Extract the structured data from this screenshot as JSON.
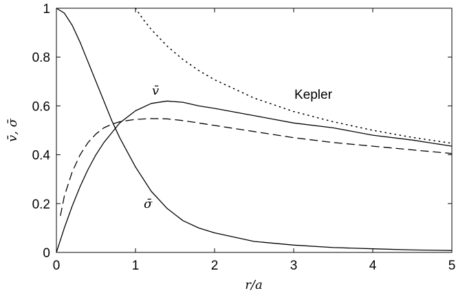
{
  "chart_data": {
    "type": "line",
    "title": "",
    "xlabel": "r/a",
    "ylabel": "v̄, σ̄",
    "xlim": [
      0,
      5
    ],
    "ylim": [
      0,
      1
    ],
    "grid": false,
    "xticks": [
      "0",
      "1",
      "2",
      "3",
      "4",
      "5"
    ],
    "yticks": [
      "0",
      "0.2",
      "0.4",
      "0.6",
      "0.8",
      "1"
    ],
    "annotations": {
      "v_bar": "v̄",
      "sigma_bar": "σ̄",
      "kepler": "Kepler"
    },
    "series": [
      {
        "name": "v̄",
        "style": "solid",
        "x": [
          0,
          0.1,
          0.2,
          0.3,
          0.4,
          0.5,
          0.6,
          0.7,
          0.8,
          1.0,
          1.2,
          1.4,
          1.6,
          1.8,
          2.0,
          2.5,
          3.0,
          3.5,
          4.0,
          4.5,
          5.0
        ],
        "y": [
          0,
          0.1,
          0.19,
          0.27,
          0.34,
          0.4,
          0.45,
          0.49,
          0.53,
          0.58,
          0.61,
          0.62,
          0.615,
          0.6,
          0.59,
          0.56,
          0.53,
          0.51,
          0.48,
          0.46,
          0.435
        ]
      },
      {
        "name": "σ̄",
        "style": "solid",
        "x": [
          0,
          0.1,
          0.2,
          0.3,
          0.4,
          0.5,
          0.6,
          0.7,
          0.8,
          1.0,
          1.2,
          1.4,
          1.6,
          1.8,
          2.0,
          2.5,
          3.0,
          3.5,
          4.0,
          4.5,
          5.0
        ],
        "y": [
          1,
          0.98,
          0.93,
          0.86,
          0.78,
          0.7,
          0.62,
          0.54,
          0.47,
          0.35,
          0.25,
          0.18,
          0.13,
          0.1,
          0.08,
          0.045,
          0.03,
          0.02,
          0.015,
          0.01,
          0.008
        ]
      },
      {
        "name": "",
        "style": "dashed",
        "x": [
          0.05,
          0.1,
          0.2,
          0.3,
          0.4,
          0.5,
          0.6,
          0.7,
          0.8,
          1.0,
          1.2,
          1.4,
          1.6,
          1.8,
          2.0,
          2.5,
          3.0,
          3.5,
          4.0,
          4.5,
          5.0
        ],
        "y": [
          0.15,
          0.23,
          0.33,
          0.4,
          0.45,
          0.485,
          0.51,
          0.525,
          0.535,
          0.545,
          0.548,
          0.547,
          0.54,
          0.53,
          0.52,
          0.495,
          0.47,
          0.45,
          0.435,
          0.42,
          0.405
        ]
      },
      {
        "name": "Kepler",
        "style": "dotted",
        "x": [
          1.0,
          1.1,
          1.2,
          1.4,
          1.6,
          1.8,
          2.0,
          2.5,
          3.0,
          3.5,
          4.0,
          4.5,
          5.0
        ],
        "y": [
          1.0,
          0.953,
          0.913,
          0.845,
          0.79,
          0.745,
          0.707,
          0.632,
          0.577,
          0.535,
          0.5,
          0.471,
          0.447
        ]
      }
    ]
  }
}
